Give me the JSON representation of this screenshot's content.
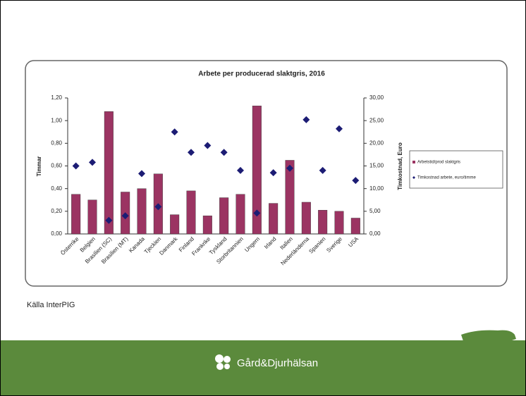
{
  "chart_data": {
    "type": "bar",
    "title": "Arbete per producerad slaktgris, 2016",
    "y_label": "Timmar",
    "y2_label": "Timkostnad, Euro",
    "categories": [
      "Österrike",
      "Belgien",
      "Brasilien (SC)",
      "Brasilien (MT)",
      "Kanada",
      "Tjeckien",
      "Danmark",
      "Finland",
      "Frankrike",
      "Tyskland",
      "Storbritannien",
      "Ungern",
      "Irland",
      "Italien",
      "Nederländerna",
      "Spanien",
      "Sverige",
      "USA"
    ],
    "series": [
      {
        "name": "Arbetstid/prod slaktgris",
        "type": "bar",
        "color": "#9b3462",
        "values": [
          0.35,
          0.3,
          1.08,
          0.37,
          0.4,
          0.53,
          0.17,
          0.38,
          0.16,
          0.32,
          0.35,
          1.13,
          0.27,
          0.65,
          0.28,
          0.21,
          0.2,
          0.14
        ]
      },
      {
        "name": "Timkostnad arbete, euro/timme",
        "type": "scatter",
        "marker": "diamond",
        "axis": "y2",
        "color": "#1c1c74",
        "values": [
          15.0,
          15.8,
          3.0,
          4.0,
          13.3,
          6.0,
          22.5,
          18.0,
          19.5,
          18.0,
          14.0,
          4.6,
          13.5,
          14.5,
          25.2,
          14.0,
          23.2,
          11.8
        ]
      }
    ],
    "ylim": [
      0,
      1.2
    ],
    "yticks": [
      {
        "value": 0,
        "label": "0,00"
      },
      {
        "value": 0.2,
        "label": "0,20"
      },
      {
        "value": 0.4,
        "label": "0,40"
      },
      {
        "value": 0.6,
        "label": "0,60"
      },
      {
        "value": 0.8,
        "label": "0,80"
      },
      {
        "value": 1.0,
        "label": "1,00"
      },
      {
        "value": 1.2,
        "label": "1,20"
      }
    ],
    "y2lim": [
      0,
      30
    ],
    "y2ticks": [
      {
        "value": 0,
        "label": "0,00"
      },
      {
        "value": 5,
        "label": "5,00"
      },
      {
        "value": 10,
        "label": "10,00"
      },
      {
        "value": 15,
        "label": "15,00"
      },
      {
        "value": 20,
        "label": "20,00"
      },
      {
        "value": 25,
        "label": "25,00"
      },
      {
        "value": 30,
        "label": "30,00"
      }
    ],
    "legend": "right"
  },
  "source": "Källa InterPIG",
  "footer": {
    "brand": "Gård&Djurhälsan"
  }
}
